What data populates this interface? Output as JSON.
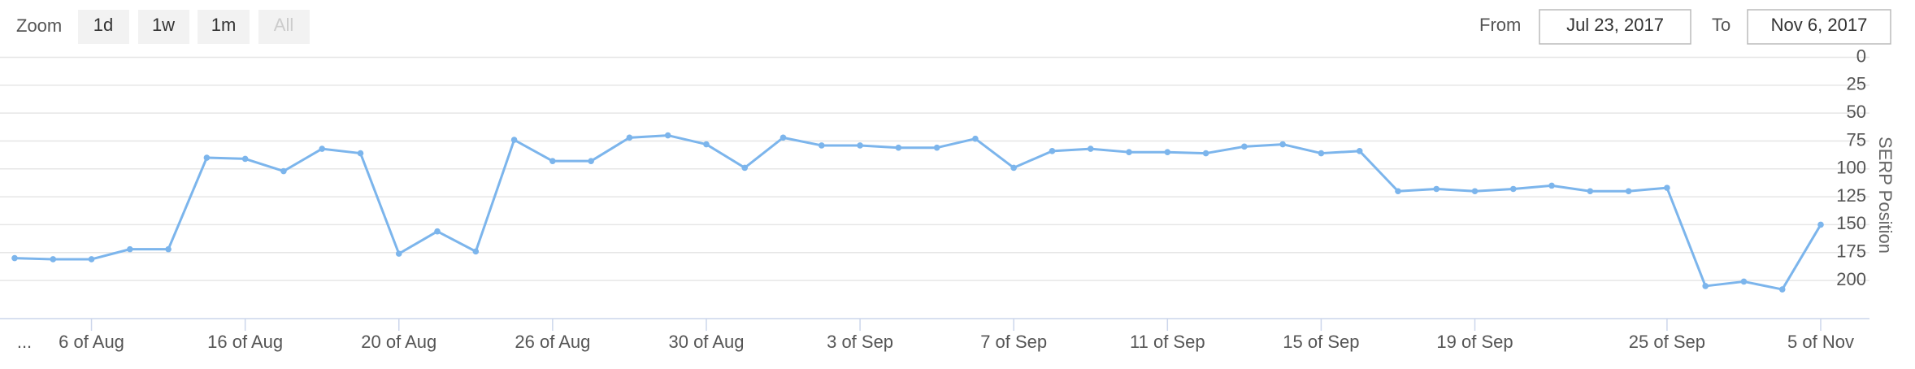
{
  "zoom_label": "Zoom",
  "zoom_buttons": [
    "1d",
    "1w",
    "1m",
    "All"
  ],
  "from_label": "From",
  "from_value": "Jul 23, 2017",
  "to_label": "To",
  "to_value": "Nov 6, 2017",
  "chart_data": {
    "type": "line",
    "y_axis_label": "SERP Position",
    "reversed": true,
    "categories": [
      "...",
      null,
      "6 of Aug",
      null,
      null,
      null,
      "16 of Aug",
      null,
      null,
      null,
      "20 of Aug",
      null,
      null,
      null,
      "26 of Aug",
      null,
      null,
      null,
      "30 of Aug",
      null,
      null,
      null,
      "3 of Sep",
      null,
      null,
      null,
      "7 of Sep",
      null,
      null,
      null,
      "11 of Sep",
      null,
      null,
      null,
      "15 of Sep",
      null,
      null,
      null,
      "19 of Sep",
      null,
      null,
      null,
      null,
      "25 of Sep",
      null,
      null,
      null,
      "5 of Nov"
    ],
    "series": [
      {
        "name": "SERP Position",
        "color": "#7cb5ec",
        "values": [
          180,
          181,
          181,
          172,
          172,
          90,
          91,
          102,
          82,
          86,
          176,
          156,
          174,
          74,
          93,
          93,
          72,
          70,
          78,
          99,
          72,
          79,
          79,
          81,
          81,
          73,
          99,
          84,
          82,
          85,
          85,
          86,
          80,
          78,
          86,
          84,
          120,
          118,
          120,
          118,
          115,
          120,
          120,
          117,
          205,
          201,
          208,
          150
        ]
      }
    ],
    "ylim": [
      0,
      232
    ],
    "yticks": [
      0,
      25,
      50,
      75,
      100,
      125,
      150,
      175,
      200
    ],
    "grid": true
  }
}
